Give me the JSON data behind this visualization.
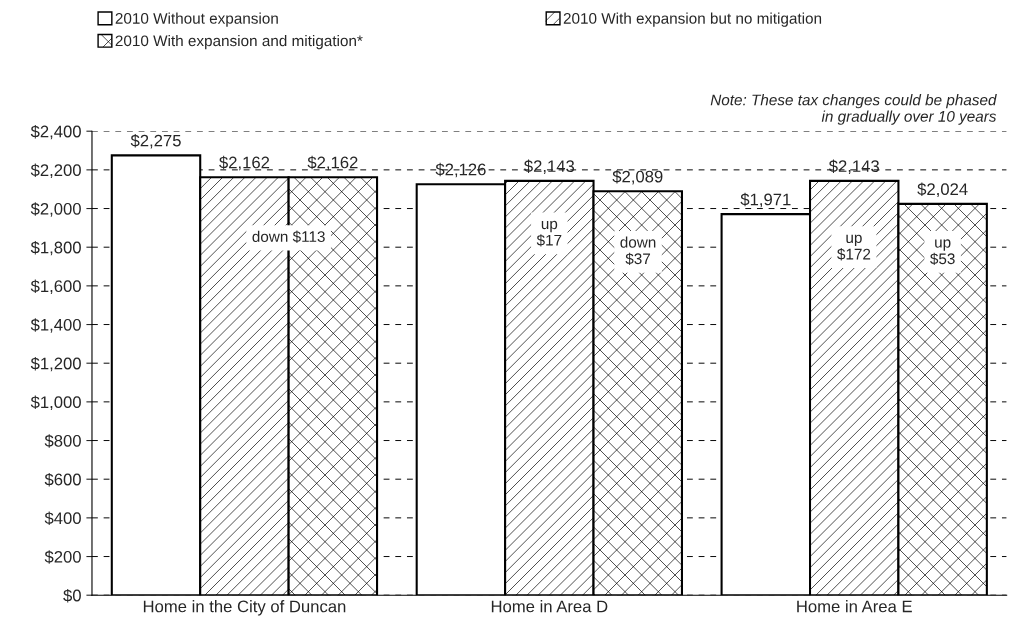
{
  "chart_data": {
    "type": "bar",
    "categories": [
      "Home in the City of Duncan",
      "Home in Area D",
      "Home in Area E"
    ],
    "series": [
      {
        "name": "2010 Without expansion",
        "color": "#ffffff",
        "values": [
          2275,
          2126,
          1971
        ],
        "value_labels": [
          "$2,275",
          "$2,126",
          "$1,971"
        ]
      },
      {
        "name": "2010 With expansion but no mitigation",
        "color": "#ffffff",
        "values": [
          2162,
          2143,
          2143
        ],
        "value_labels": [
          "$2,162",
          "$2,143",
          "$2,143"
        ]
      },
      {
        "name": "2010 With expansion and mitigation*",
        "color": "#ffffff",
        "values": [
          2162,
          2089,
          2024
        ],
        "value_labels": [
          "$2,162",
          "$2,089",
          "$2,024"
        ]
      }
    ],
    "ylim": [
      0,
      2400
    ],
    "yticks": [
      {
        "value": 0,
        "label": "$0"
      },
      {
        "value": 200,
        "label": "$200"
      },
      {
        "value": 400,
        "label": "$400"
      },
      {
        "value": 600,
        "label": "$600"
      },
      {
        "value": 800,
        "label": "$800"
      },
      {
        "value": 1000,
        "label": "$1,000"
      },
      {
        "value": 1200,
        "label": "$1,200"
      },
      {
        "value": 1400,
        "label": "$1,400"
      },
      {
        "value": 1600,
        "label": "$1,600"
      },
      {
        "value": 1800,
        "label": "$1,800"
      },
      {
        "value": 2000,
        "label": "$2,000"
      },
      {
        "value": 2200,
        "label": "$2,200"
      },
      {
        "value": 2400,
        "label": "$2,400"
      }
    ],
    "grid": "y",
    "legend": "top",
    "annotations": [
      "down $113",
      "up\n$17",
      "down\n$37",
      "up\n$172",
      "up\n$53",
      "Note: These tax changes could be phased\nin gradually over 10 years"
    ]
  }
}
